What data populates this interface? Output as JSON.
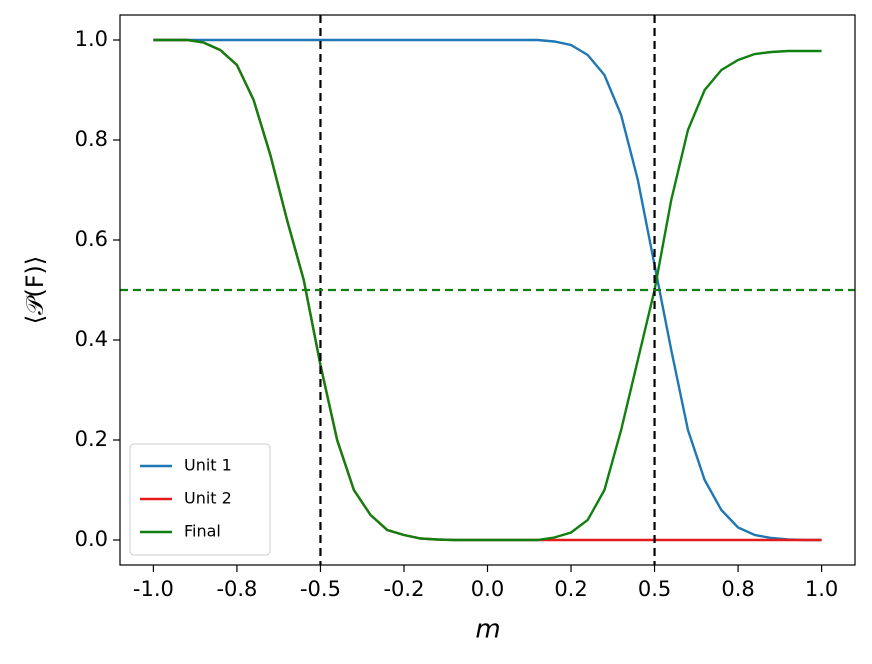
{
  "chart_data": {
    "type": "line",
    "xlabel": "m",
    "ylabel": "⟨𝒫(F)⟩",
    "x": [
      -1.0,
      -0.95,
      -0.9,
      -0.85,
      -0.8,
      -0.75,
      -0.7,
      -0.65,
      -0.6,
      -0.55,
      -0.5,
      -0.45,
      -0.4,
      -0.35,
      -0.3,
      -0.25,
      -0.2,
      -0.15,
      -0.1,
      -0.05,
      0.0,
      0.05,
      0.1,
      0.15,
      0.2,
      0.25,
      0.3,
      0.35,
      0.4,
      0.45,
      0.5,
      0.55,
      0.6,
      0.65,
      0.7,
      0.75,
      0.8,
      0.85,
      0.9,
      0.95,
      1.0
    ],
    "series": [
      {
        "name": "Unit 1",
        "color": "#1f77b4",
        "values": [
          1,
          1,
          1,
          1,
          1,
          1,
          1,
          1,
          1,
          1,
          1,
          1,
          1,
          1,
          1,
          1,
          1,
          1,
          1,
          1,
          1,
          1,
          1,
          1,
          0.997,
          0.99,
          0.97,
          0.93,
          0.85,
          0.72,
          0.55,
          0.38,
          0.22,
          0.12,
          0.06,
          0.025,
          0.01,
          0.004,
          0.001,
          0,
          0
        ]
      },
      {
        "name": "Unit 2",
        "color": "#e41a1c",
        "values": [
          1,
          1,
          1,
          0.995,
          0.98,
          0.95,
          0.88,
          0.77,
          0.64,
          0.52,
          0.35,
          0.2,
          0.1,
          0.05,
          0.02,
          0.01,
          0.003,
          0.001,
          0,
          0,
          0,
          0,
          0,
          0,
          0,
          0,
          0,
          0,
          0,
          0,
          0,
          0,
          0,
          0,
          0,
          0,
          0,
          0,
          0,
          0,
          0
        ]
      },
      {
        "name": "Final",
        "color": "#108010",
        "values": [
          1,
          1,
          1,
          0.995,
          0.98,
          0.95,
          0.88,
          0.77,
          0.64,
          0.52,
          0.35,
          0.2,
          0.1,
          0.05,
          0.02,
          0.01,
          0.003,
          0.001,
          0,
          0,
          0,
          0,
          0,
          0,
          0.005,
          0.015,
          0.04,
          0.1,
          0.22,
          0.36,
          0.5,
          0.68,
          0.82,
          0.9,
          0.94,
          0.96,
          0.972,
          0.976,
          0.978,
          0.978,
          0.978
        ]
      }
    ],
    "xlim": [
      -1.1,
      1.1
    ],
    "ylim": [
      -0.05,
      1.05
    ],
    "xticks": [
      {
        "value": -1,
        "label": "-1.0"
      },
      {
        "value": -0.75,
        "label": "-0.8"
      },
      {
        "value": -0.5,
        "label": "-0.5"
      },
      {
        "value": -0.25,
        "label": "-0.2"
      },
      {
        "value": 0,
        "label": "0.0"
      },
      {
        "value": 0.25,
        "label": "0.2"
      },
      {
        "value": 0.5,
        "label": "0.5"
      },
      {
        "value": 0.75,
        "label": "0.8"
      },
      {
        "value": 1,
        "label": "1.0"
      }
    ],
    "yticks": [
      {
        "value": 0,
        "label": "0.0"
      },
      0.2,
      0.4,
      0.6,
      0.8,
      {
        "value": 1,
        "label": "1.0"
      }
    ],
    "vlines": [
      -0.5,
      0.5
    ],
    "vline_color": "#000000",
    "hline": 0.5,
    "hline_color": "#108010",
    "legend": "lower left"
  }
}
